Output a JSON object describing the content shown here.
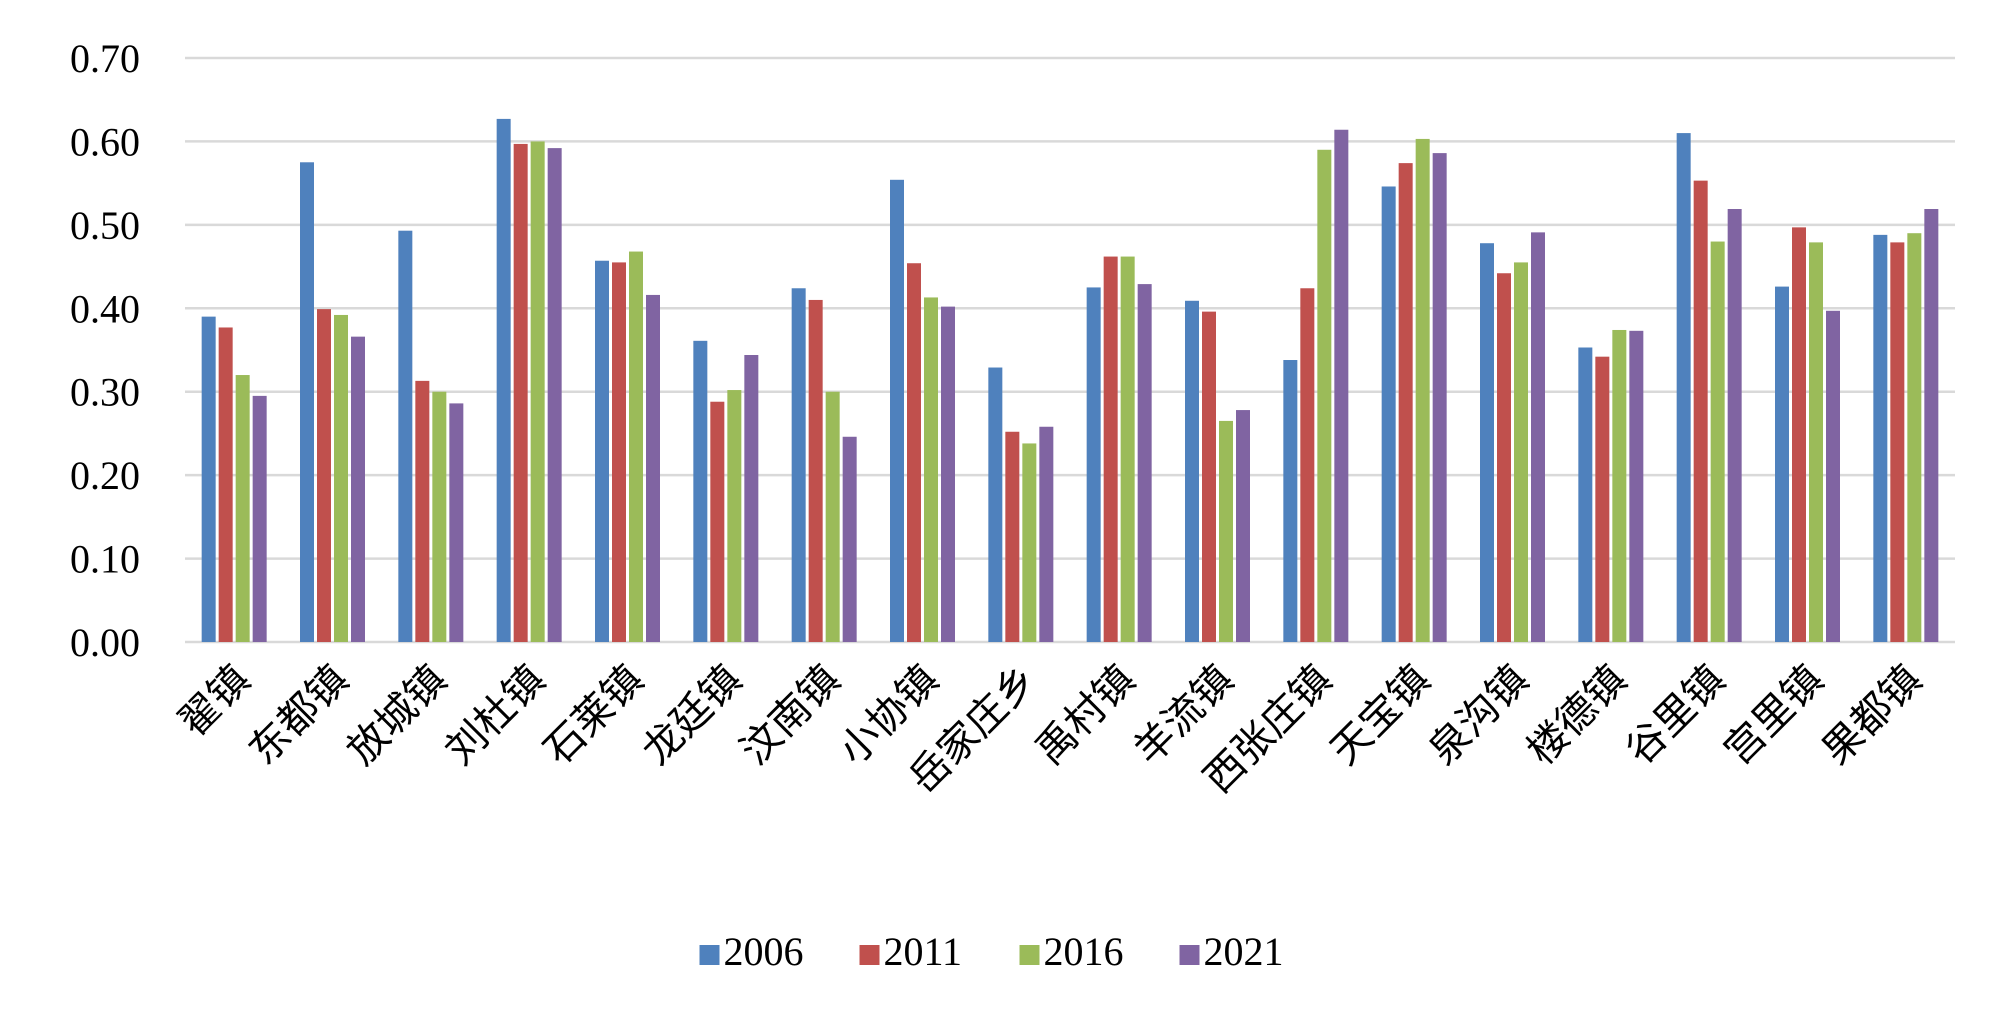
{
  "chart_data": {
    "type": "bar",
    "title": "",
    "xlabel": "",
    "ylabel": "",
    "ylim": [
      0,
      0.7
    ],
    "yticks": [
      "0.00",
      "0.10",
      "0.20",
      "0.30",
      "0.40",
      "0.50",
      "0.60",
      "0.70"
    ],
    "grid": true,
    "legend_position": "bottom",
    "categories": [
      "翟镇",
      "东都镇",
      "放城镇",
      "刘杜镇",
      "石莱镇",
      "龙廷镇",
      "汶南镇",
      "小协镇",
      "岳家庄乡",
      "禹村镇",
      "羊流镇",
      "西张庄镇",
      "天宝镇",
      "泉沟镇",
      "楼德镇",
      "谷里镇",
      "宫里镇",
      "果都镇"
    ],
    "series": [
      {
        "name": "2006",
        "color": "#4f81bd",
        "values": [
          0.39,
          0.575,
          0.493,
          0.627,
          0.457,
          0.361,
          0.424,
          0.554,
          0.329,
          0.425,
          0.409,
          0.338,
          0.546,
          0.478,
          0.353,
          0.61,
          0.426,
          0.488
        ]
      },
      {
        "name": "2011",
        "color": "#c0504d",
        "values": [
          0.377,
          0.399,
          0.313,
          0.597,
          0.455,
          0.288,
          0.41,
          0.454,
          0.252,
          0.462,
          0.396,
          0.424,
          0.574,
          0.442,
          0.342,
          0.553,
          0.497,
          0.479
        ]
      },
      {
        "name": "2016",
        "color": "#9bbb59",
        "values": [
          0.32,
          0.392,
          0.3,
          0.6,
          0.468,
          0.302,
          0.3,
          0.413,
          0.238,
          0.462,
          0.265,
          0.59,
          0.603,
          0.455,
          0.374,
          0.48,
          0.479,
          0.49
        ]
      },
      {
        "name": "2021",
        "color": "#8064a2",
        "values": [
          0.295,
          0.366,
          0.286,
          0.592,
          0.416,
          0.344,
          0.246,
          0.402,
          0.258,
          0.429,
          0.278,
          0.614,
          0.586,
          0.491,
          0.373,
          0.519,
          0.397,
          0.519
        ]
      }
    ]
  }
}
